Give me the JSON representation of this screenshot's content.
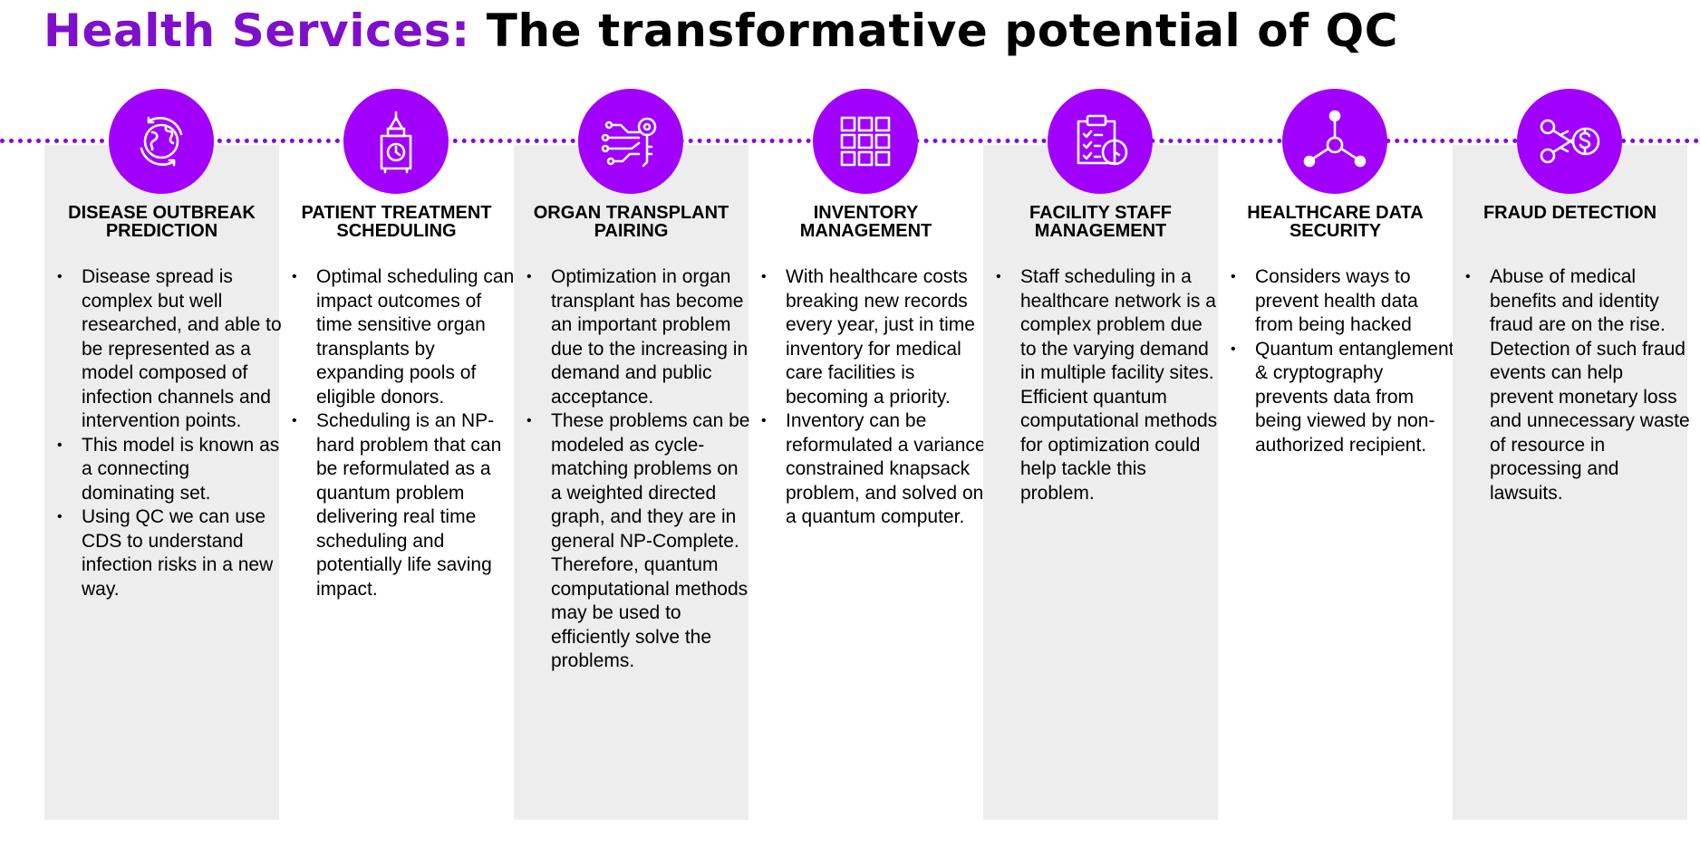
{
  "title": {
    "accent": "Health Services:",
    "rest": " The transformative potential of QC"
  },
  "colors": {
    "accent_text": "#7e0fcc",
    "icon_circle": "#a100ff",
    "dotted_line": "#8a00e6",
    "panel_shade": "#ededed"
  },
  "columns": [
    {
      "icon": "globe-refresh-icon",
      "title_lines": [
        "DISEASE OUTBREAK",
        "PREDICTION"
      ],
      "bullets": [
        "Disease spread is complex but well researched, and able to be represented as a model composed of infection channels and intervention points.",
        "This model is known as a connecting dominating set.",
        "Using QC we can use CDS to understand infection risks in a new way."
      ]
    },
    {
      "icon": "clock-tower-icon",
      "title_lines": [
        "PATIENT TREATMENT",
        "SCHEDULING"
      ],
      "bullets": [
        "Optimal scheduling can impact outcomes of time sensitive organ transplants by expanding pools of eligible donors.",
        "Scheduling is an NP-hard problem that can be reformulated as a quantum problem delivering real time scheduling and potentially life saving impact."
      ]
    },
    {
      "icon": "circuit-key-icon",
      "title_lines": [
        "ORGAN TRANSPLANT",
        "PAIRING"
      ],
      "bullets": [
        "Optimization in organ transplant has become an important problem due to the increasing in demand and public acceptance.",
        "These problems can be modeled as cycle-matching problems on a weighted directed graph, and they are in general NP-Complete. Therefore, quantum computational methods may be used to efficiently solve the problems."
      ]
    },
    {
      "icon": "grid-icon",
      "title_lines": [
        "INVENTORY",
        "MANAGEMENT"
      ],
      "bullets": [
        "With healthcare costs breaking new records every year, just in time inventory for medical care facilities is becoming a priority.",
        "Inventory can be reformulated a variance constrained knapsack problem, and solved on a quantum computer."
      ]
    },
    {
      "icon": "clipboard-clock-icon",
      "title_lines": [
        "FACILITY STAFF",
        "MANAGEMENT"
      ],
      "bullets": [
        "Staff scheduling in a healthcare network is a complex problem due to the varying demand in multiple facility sites. Efficient quantum computational methods for optimization could help tackle this problem."
      ]
    },
    {
      "icon": "network-node-icon",
      "title_lines": [
        "HEALTHCARE DATA",
        "SECURITY"
      ],
      "bullets": [
        "Considers ways to prevent health data from being hacked",
        "Quantum entanglement & cryptography prevents data from being viewed by non-authorized recipient."
      ]
    },
    {
      "icon": "scissors-dollar-icon",
      "title_lines": [
        "FRAUD DETECTION"
      ],
      "bullets": [
        "Abuse of medical benefits and identity fraud are on the rise. Detection of such fraud events can help prevent monetary loss and unnecessary waste of resource in processing and lawsuits."
      ]
    }
  ]
}
